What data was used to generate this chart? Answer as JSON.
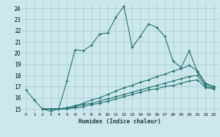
{
  "xlabel": "Humidex (Indice chaleur)",
  "background_color": "#cde8ec",
  "grid_color": "#aecfd4",
  "line_color": "#1a6b6b",
  "xlim": [
    -0.5,
    23.5
  ],
  "ylim": [
    14.7,
    24.5
  ],
  "yticks": [
    15,
    16,
    17,
    18,
    19,
    20,
    21,
    22,
    23,
    24
  ],
  "xticks": [
    0,
    1,
    2,
    3,
    4,
    5,
    6,
    7,
    8,
    9,
    10,
    11,
    12,
    13,
    14,
    15,
    16,
    17,
    18,
    19,
    20,
    21,
    22,
    23
  ],
  "series": [
    {
      "x": [
        0,
        1,
        2,
        3,
        4,
        5,
        6,
        7,
        8,
        9,
        10,
        11,
        12,
        13,
        14,
        15,
        16,
        17,
        18,
        19,
        20,
        21,
        22,
        23
      ],
      "y": [
        16.7,
        15.8,
        15.0,
        14.8,
        15.0,
        17.5,
        20.3,
        20.2,
        20.7,
        21.7,
        21.8,
        23.2,
        24.2,
        20.5,
        21.5,
        22.6,
        22.3,
        21.5,
        19.3,
        18.7,
        20.2,
        18.3,
        17.2,
        17.0
      ],
      "marker": "+"
    },
    {
      "x": [
        2,
        3,
        4,
        5,
        6,
        7,
        8,
        9,
        10,
        11,
        12,
        13,
        14,
        15,
        16,
        17,
        18,
        19,
        20,
        21,
        22,
        23
      ],
      "y": [
        15.0,
        15.0,
        15.0,
        15.1,
        15.3,
        15.5,
        15.8,
        16.0,
        16.3,
        16.6,
        16.9,
        17.1,
        17.4,
        17.6,
        17.9,
        18.1,
        18.4,
        18.6,
        18.9,
        18.4,
        17.3,
        17.0
      ],
      "marker": "+"
    },
    {
      "x": [
        2,
        3,
        4,
        5,
        6,
        7,
        8,
        9,
        10,
        11,
        12,
        13,
        14,
        15,
        16,
        17,
        18,
        19,
        20,
        21,
        22,
        23
      ],
      "y": [
        15.0,
        15.0,
        15.0,
        15.1,
        15.2,
        15.4,
        15.5,
        15.7,
        15.9,
        16.1,
        16.3,
        16.5,
        16.7,
        16.9,
        17.1,
        17.3,
        17.5,
        17.7,
        17.9,
        18.0,
        17.0,
        16.9
      ],
      "marker": "+"
    },
    {
      "x": [
        2,
        3,
        4,
        5,
        6,
        7,
        8,
        9,
        10,
        11,
        12,
        13,
        14,
        15,
        16,
        17,
        18,
        19,
        20,
        21,
        22,
        23
      ],
      "y": [
        15.0,
        15.0,
        15.0,
        15.0,
        15.1,
        15.2,
        15.4,
        15.5,
        15.7,
        15.9,
        16.1,
        16.3,
        16.5,
        16.7,
        16.8,
        17.0,
        17.1,
        17.3,
        17.5,
        17.6,
        16.9,
        16.8
      ],
      "marker": "+"
    }
  ]
}
